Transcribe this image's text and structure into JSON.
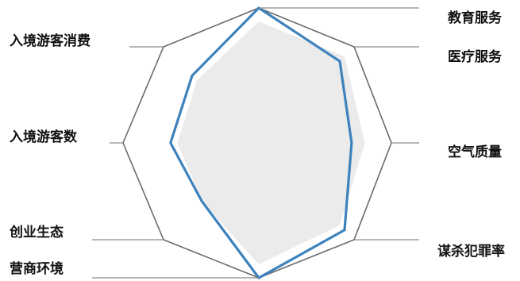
{
  "chart_data": {
    "type": "radar",
    "categories": [
      "教育服务",
      "医疗服务",
      "空气质量",
      "谋杀犯罪率",
      "营商环境",
      "创业生态",
      "入境游客数",
      "入境游客消费"
    ],
    "series": [
      {
        "values": [
          100,
          85,
          70,
          90,
          100,
          60,
          65,
          70
        ]
      },
      {
        "values": [
          90,
          90,
          80,
          85,
          90,
          60,
          60,
          65
        ]
      }
    ],
    "rmax": 100,
    "grid": false,
    "legend": "none",
    "colors": {
      "outline": "#6b6b6b",
      "highlight": "#3d82bd",
      "fill": "#ebebeb",
      "leader": "#8a8a8a"
    }
  }
}
